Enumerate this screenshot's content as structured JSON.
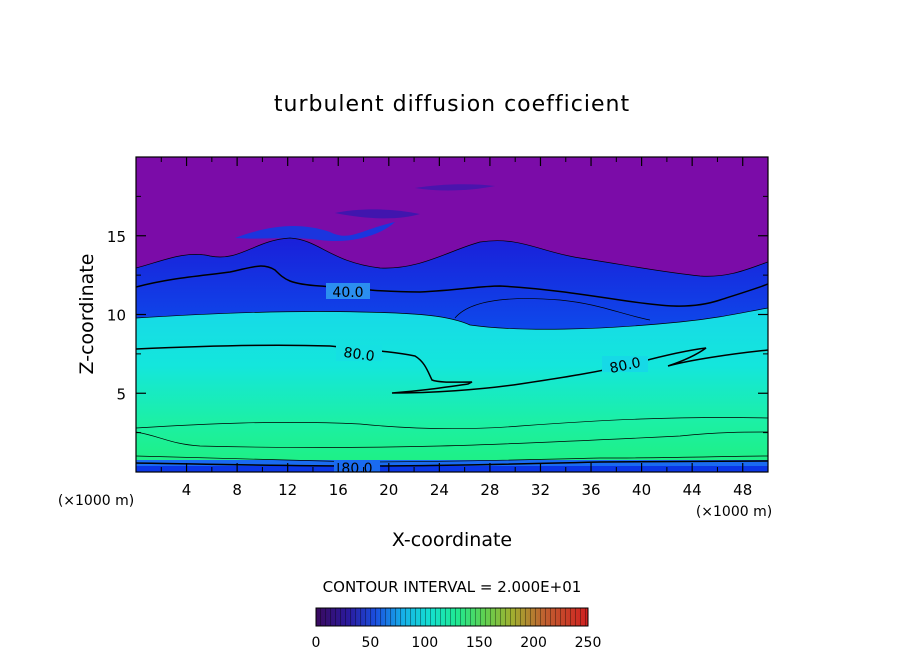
{
  "chart_data": {
    "type": "contour",
    "title": "turbulent diffusion coefficient",
    "xlabel": "X-coordinate",
    "ylabel": "Z-coordinate",
    "x_units": "(×1000 m)",
    "z_units": "(×1000 m)",
    "xlim": [
      0,
      50
    ],
    "ylim": [
      0,
      20
    ],
    "x_ticks": [
      "4",
      "8",
      "12",
      "16",
      "20",
      "24",
      "28",
      "32",
      "36",
      "40",
      "44",
      "48"
    ],
    "y_ticks": [
      "5",
      "10",
      "15"
    ],
    "contour_interval_label": "CONTOUR INTERVAL = 2.000E+01",
    "contour_labels": [
      {
        "text": "40.0",
        "x": 16.5,
        "z": 11.0
      },
      {
        "text": "80.0",
        "x": 17.5,
        "z": 7.6
      },
      {
        "text": "80.0",
        "x": 38.5,
        "z": 6.5
      },
      {
        "text": "80.0",
        "x": 17.0,
        "z": 0.3
      }
    ],
    "colorbar": {
      "range": [
        0,
        250
      ],
      "tick_labels": [
        "0",
        "50",
        "100",
        "150",
        "200",
        "250"
      ]
    },
    "colors": {
      "top": "#7b0ca8",
      "band_blue": "#0a36e6",
      "mid_cyan": "#16e8dd",
      "low_green": "#1fee8f",
      "surface": "#1a6bf0"
    }
  }
}
